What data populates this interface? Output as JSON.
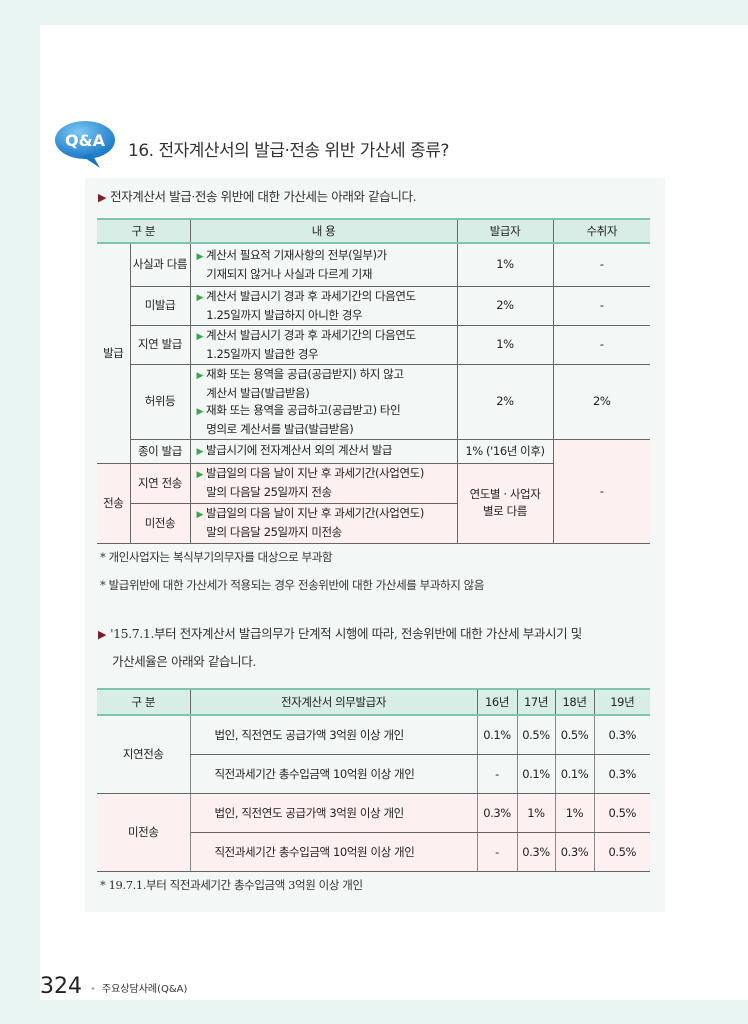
{
  "badge": "Q&A",
  "title": "16. 전자계산서의 발급·전송 위반 가산세 종류?",
  "lead1": "전자계산서 발급·전송 위반에 대한 가산세는 아래와 같습니다.",
  "table1": {
    "headers": [
      "구 분",
      "내 용",
      "발급자",
      "수취자"
    ],
    "group_issue": "발급",
    "group_send": "전송",
    "rows": [
      {
        "type": "사실과 다름",
        "lines": [
          "계산서 필요적 기재사항의 전부(일부)가",
          "기재되지 않거나 사실과 다르게 기재"
        ],
        "issuer": "1%",
        "receiver": "-"
      },
      {
        "type": "미발급",
        "lines": [
          "계산서 발급시기 경과 후 과세기간의 다음연도",
          "1.25일까지 발급하지 아니한 경우"
        ],
        "issuer": "2%",
        "receiver": "-"
      },
      {
        "type": "지연 발급",
        "lines": [
          "계산서 발급시기 경과 후 과세기간의 다음연도",
          "1.25일까지 발급한 경우"
        ],
        "issuer": "1%",
        "receiver": "-"
      },
      {
        "type": "허위등",
        "lines": [
          "재화 또는 용역을 공급(공급받지) 하지 않고",
          "계산서 발급(발급받음)"
        ],
        "lines2": [
          "재화 또는 용역을 공급하고(공급받고) 타인",
          "명의로 계산서를 발급(발급받음)"
        ],
        "issuer": "2%",
        "receiver": "2%"
      },
      {
        "type": "종이 발급",
        "lines": [
          "발급시기에 전자계산서 외의 계산서 발급"
        ],
        "issuer": "1% ('16년 이후)"
      },
      {
        "type": "지연 전송",
        "lines": [
          "발급일의 다음 날이 지난 후 과세기간(사업연도)",
          "말의 다음달 25일까지 전송"
        ]
      },
      {
        "type": "미전송",
        "lines": [
          "발급일의 다음 날이 지난 후 과세기간(사업연도)",
          "말의 다음달 25일까지 미전송"
        ]
      }
    ],
    "send_issuer": "연도별 · 사업자 별로 다름",
    "send_receiver": "-"
  },
  "notes1": [
    "* 개인사업자는 복식부기의무자를 대상으로 부과함",
    "* 발급위반에 대한 가산세가 적용되는 경우 전송위반에 대한 가산세를 부과하지 않음"
  ],
  "lead2a": "'15.7.1.부터 전자계산서 발급의무가 단계적 시행에 따라, 전송위반에 대한 가산세 부과시기 및",
  "lead2b": "가산세율은 아래와 같습니다.",
  "table2": {
    "headers": [
      "구 분",
      "전자계산서 의무발급자",
      "16년",
      "17년",
      "18년",
      "19년"
    ],
    "groups": [
      "지연전송",
      "미전송"
    ],
    "rows": [
      {
        "who": "법인, 직전연도 공급가액 3억원 이상 개인",
        "v": [
          "0.1%",
          "0.5%",
          "0.5%",
          "0.3%"
        ]
      },
      {
        "who": "직전과세기간 총수입금액 10억원 이상 개인",
        "v": [
          "-",
          "0.1%",
          "0.1%",
          "0.3%"
        ]
      },
      {
        "who": "법인, 직전연도 공급가액 3억원 이상 개인",
        "v": [
          "0.3%",
          "1%",
          "1%",
          "0.5%"
        ]
      },
      {
        "who": "직전과세기간 총수입금액 10억원 이상 개인",
        "v": [
          "-",
          "0.3%",
          "0.3%",
          "0.5%"
        ]
      }
    ]
  },
  "note2": "* 19.7.1.부터 직전과세기간 총수입금액 3억원 이상 개인",
  "footer": {
    "page": "324",
    "section": "주요상담사례(Q&A)"
  },
  "colors": {
    "accent": "#7dc4b0",
    "header_bg": "#d8ede6",
    "send_bg": "#fcf1f0",
    "badge": "#1e88d0"
  }
}
